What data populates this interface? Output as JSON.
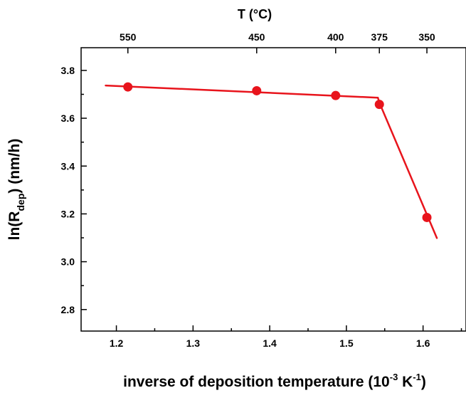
{
  "chart_data": {
    "type": "line",
    "xlabel": "inverse of deposition temperature (10",
    "xlabel_exp1": "-3",
    "xlabel_mid": " K",
    "xlabel_exp2": "-1",
    "xlabel_end": ")",
    "ylabel": "ln(R",
    "ylabel_sub": "dep",
    "ylabel_end": ") (nm/h)",
    "top_axis_label": "T (°C)",
    "xlim": [
      1.154,
      1.656
    ],
    "ylim": [
      2.71,
      3.895
    ],
    "x_ticks": [
      1.2,
      1.3,
      1.4,
      1.5,
      1.6
    ],
    "x_tick_labels": [
      "1.2",
      "1.3",
      "1.4",
      "1.5",
      "1.6"
    ],
    "y_ticks": [
      2.8,
      3.0,
      3.2,
      3.4,
      3.6,
      3.8
    ],
    "y_tick_labels": [
      "2.8",
      "3.0",
      "3.2",
      "3.4",
      "3.6",
      "3.8"
    ],
    "top_ticks": [
      {
        "label": "550",
        "x": 1.215
      },
      {
        "label": "450",
        "x": 1.383
      },
      {
        "label": "400",
        "x": 1.486
      },
      {
        "label": "375",
        "x": 1.543
      },
      {
        "label": "350",
        "x": 1.605
      }
    ],
    "series": [
      {
        "color": "#e8141c",
        "points": [
          {
            "x": 1.215,
            "y": 3.731
          },
          {
            "x": 1.383,
            "y": 3.715
          },
          {
            "x": 1.486,
            "y": 3.695
          },
          {
            "x": 1.543,
            "y": 3.658
          },
          {
            "x": 1.605,
            "y": 3.185
          }
        ],
        "fit_lines": [
          [
            {
              "x": 1.186,
              "y": 3.737
            },
            {
              "x": 1.541,
              "y": 3.686
            }
          ],
          [
            {
              "x": 1.541,
              "y": 3.686
            },
            {
              "x": 1.544,
              "y": 3.658
            }
          ],
          [
            {
              "x": 1.544,
              "y": 3.658
            },
            {
              "x": 1.618,
              "y": 3.099
            }
          ]
        ]
      }
    ],
    "grid": false,
    "legend": "none"
  }
}
